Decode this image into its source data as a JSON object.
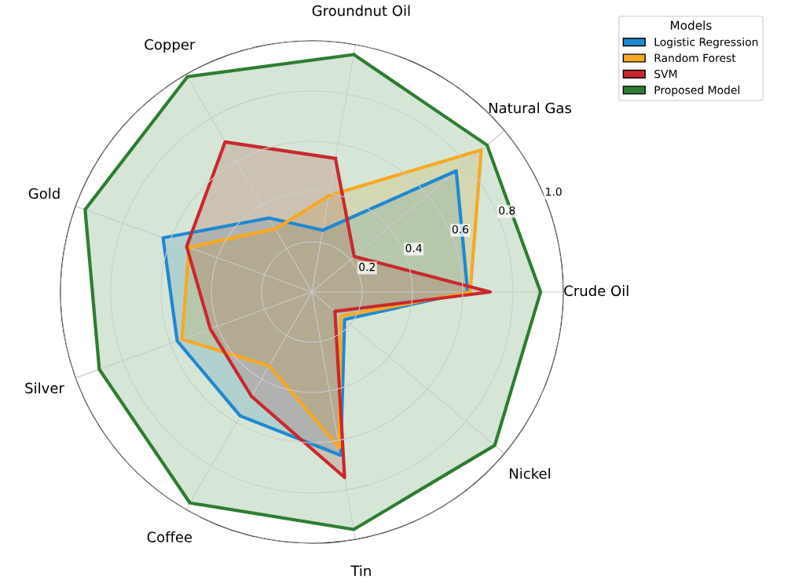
{
  "chart_data": {
    "type": "radar",
    "categories": [
      "Groundnut Oil",
      "Natural Gas",
      "Crude Oil",
      "Nickel",
      "Tin",
      "Coffee",
      "Silver",
      "Gold",
      "Copper"
    ],
    "series": [
      {
        "name": "Logistic Regression",
        "color": "#1f88d2",
        "values": [
          0.25,
          0.75,
          0.62,
          0.17,
          0.66,
          0.57,
          0.57,
          0.63,
          0.34
        ]
      },
      {
        "name": "Random Forest",
        "color": "#f7a823",
        "values": [
          0.39,
          0.88,
          0.63,
          0.15,
          0.63,
          0.34,
          0.55,
          0.52,
          0.29
        ]
      },
      {
        "name": "SVM",
        "color": "#c9282d",
        "values": [
          0.54,
          0.22,
          0.71,
          0.12,
          0.75,
          0.48,
          0.43,
          0.53,
          0.69
        ]
      },
      {
        "name": "Proposed Model",
        "color": "#2e7d32",
        "values": [
          0.96,
          0.91,
          0.91,
          0.95,
          0.96,
          0.97,
          0.9,
          0.96,
          0.99
        ]
      }
    ],
    "ylim": [
      0,
      1
    ],
    "yticks": [
      0.2,
      0.4,
      0.6,
      0.8,
      {
        "value": 1,
        "label": "1.0"
      }
    ],
    "grid": true,
    "legend": "top right",
    "legend_title": "Models"
  }
}
